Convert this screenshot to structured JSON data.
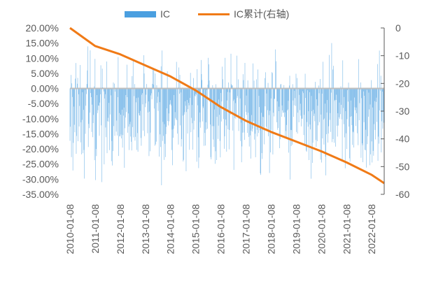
{
  "chart_data": {
    "type": "bar",
    "title": "",
    "xlabel": "",
    "ylabel": "",
    "legend": {
      "placement": "top",
      "entries": [
        "IC",
        "IC累计(右轴)"
      ]
    },
    "colors": {
      "ic_bars": "#4a9fe0",
      "cumulative_line": "#f07a16",
      "zero_line": "#bfbfbf"
    },
    "y_left": {
      "ylim": [
        -0.35,
        0.2
      ],
      "ticks": [
        0.2,
        0.15,
        0.1,
        0.05,
        0.0,
        -0.05,
        -0.1,
        -0.15,
        -0.2,
        -0.25,
        -0.3,
        -0.35
      ],
      "tick_labels": [
        "20.00%",
        "15.00%",
        "10.00%",
        "5.00%",
        "0.00%",
        "-5.00%",
        "-10.00%",
        "-15.00%",
        "-20.00%",
        "-25.00%",
        "-30.00%",
        "-35.00%"
      ]
    },
    "y_right": {
      "ylim": [
        -60,
        0
      ],
      "ticks": [
        0,
        -10,
        -20,
        -30,
        -40,
        -50,
        -60
      ],
      "tick_labels": [
        "0",
        "-10",
        "-20",
        "-30",
        "-40",
        "-50",
        "-60"
      ]
    },
    "x_axis": {
      "start": "2010-01-08",
      "end": "2022-07-08",
      "tick_labels": [
        "2010-01-08",
        "2011-01-08",
        "2012-01-08",
        "2013-01-08",
        "2014-01-08",
        "2015-01-08",
        "2016-01-08",
        "2017-01-08",
        "2018-01-08",
        "2019-01-08",
        "2020-01-08",
        "2021-01-08",
        "2022-01-08"
      ]
    },
    "series": [
      {
        "name": "IC",
        "axis": "left",
        "frequency": "weekly",
        "approx_mean": -0.086,
        "approx_range": [
          -0.32,
          0.15
        ]
      },
      {
        "name": "IC累计(右轴)",
        "axis": "right",
        "x": [
          "2010-01-08",
          "2011-01-08",
          "2012-01-08",
          "2013-01-08",
          "2014-01-08",
          "2015-01-08",
          "2016-01-08",
          "2017-01-08",
          "2018-01-08",
          "2019-01-08",
          "2020-01-08",
          "2021-01-08",
          "2022-01-08",
          "2022-07-08"
        ],
        "values": [
          0,
          -6.5,
          -9.5,
          -13.5,
          -17.5,
          -22.5,
          -28.5,
          -33.5,
          -37.5,
          -41,
          -44.5,
          -48.5,
          -53,
          -56
        ]
      }
    ]
  }
}
